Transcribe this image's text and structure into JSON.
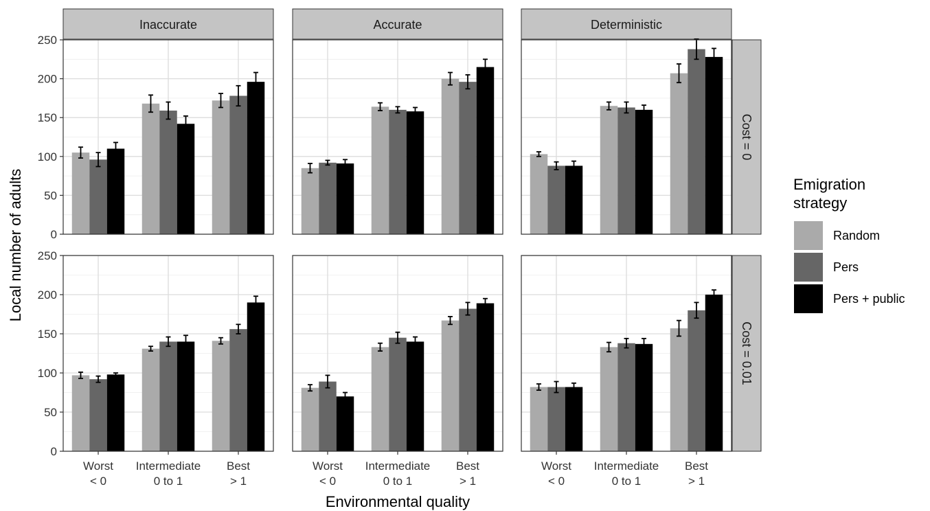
{
  "chart_data": {
    "type": "bar",
    "facet_columns": [
      "Inaccurate",
      "Accurate",
      "Deterministic"
    ],
    "facet_rows": [
      "Cost = 0",
      "Cost = 0.01"
    ],
    "categories": [
      "Worst\n< 0",
      "Intermediate\n0 to 1",
      "Best\n> 1"
    ],
    "xlabel": "Environmental quality",
    "ylabel": "Local number of adults",
    "ylim": [
      0,
      250
    ],
    "yticks": [
      0,
      50,
      100,
      150,
      200,
      250
    ],
    "grid": true,
    "legend": {
      "title": "Emigration strategy",
      "placement": "right",
      "entries": [
        {
          "name": "Random",
          "color": "#aaaaaa"
        },
        {
          "name": "Pers",
          "color": "#666666"
        },
        {
          "name": "Pers + public",
          "color": "#000000"
        }
      ]
    },
    "panels": [
      {
        "row": 0,
        "col": 0,
        "series": [
          {
            "name": "Random",
            "values": [
              105,
              168,
              172
            ],
            "errors": [
              7,
              11,
              9
            ]
          },
          {
            "name": "Pers",
            "values": [
              96,
              159,
              178
            ],
            "errors": [
              9,
              11,
              13
            ]
          },
          {
            "name": "Pers + public",
            "values": [
              110,
              142,
              196
            ],
            "errors": [
              8,
              10,
              12
            ]
          }
        ]
      },
      {
        "row": 0,
        "col": 1,
        "series": [
          {
            "name": "Random",
            "values": [
              85,
              164,
              200
            ],
            "errors": [
              6,
              5,
              8
            ]
          },
          {
            "name": "Pers",
            "values": [
              92,
              160,
              196
            ],
            "errors": [
              3,
              4,
              9
            ]
          },
          {
            "name": "Pers + public",
            "values": [
              91,
              158,
              215
            ],
            "errors": [
              5,
              5,
              10
            ]
          }
        ]
      },
      {
        "row": 0,
        "col": 2,
        "series": [
          {
            "name": "Random",
            "values": [
              103,
              165,
              207
            ],
            "errors": [
              3,
              5,
              12
            ]
          },
          {
            "name": "Pers",
            "values": [
              88,
              163,
              238
            ],
            "errors": [
              5,
              7,
              13
            ]
          },
          {
            "name": "Pers + public",
            "values": [
              88,
              160,
              228
            ],
            "errors": [
              6,
              6,
              11
            ]
          }
        ]
      },
      {
        "row": 1,
        "col": 0,
        "series": [
          {
            "name": "Random",
            "values": [
              97,
              131,
              141
            ],
            "errors": [
              4,
              3,
              4
            ]
          },
          {
            "name": "Pers",
            "values": [
              92,
              140,
              156
            ],
            "errors": [
              4,
              6,
              6
            ]
          },
          {
            "name": "Pers + public",
            "values": [
              98,
              140,
              190
            ],
            "errors": [
              2,
              8,
              8
            ]
          }
        ]
      },
      {
        "row": 1,
        "col": 1,
        "series": [
          {
            "name": "Random",
            "values": [
              81,
              133,
              167
            ],
            "errors": [
              4,
              5,
              5
            ]
          },
          {
            "name": "Pers",
            "values": [
              89,
              145,
              182
            ],
            "errors": [
              8,
              7,
              8
            ]
          },
          {
            "name": "Pers + public",
            "values": [
              70,
              140,
              189
            ],
            "errors": [
              5,
              6,
              6
            ]
          }
        ]
      },
      {
        "row": 1,
        "col": 2,
        "series": [
          {
            "name": "Random",
            "values": [
              82,
              133,
              157
            ],
            "errors": [
              4,
              6,
              10
            ]
          },
          {
            "name": "Pers",
            "values": [
              82,
              138,
              180
            ],
            "errors": [
              7,
              6,
              10
            ]
          },
          {
            "name": "Pers + public",
            "values": [
              82,
              137,
              200
            ],
            "errors": [
              5,
              7,
              6
            ]
          }
        ]
      }
    ]
  }
}
